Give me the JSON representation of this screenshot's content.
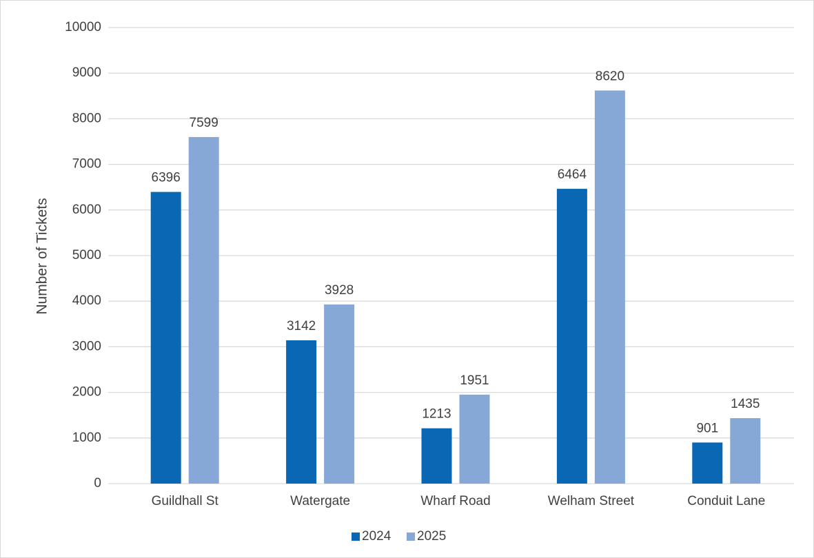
{
  "chart_data": {
    "type": "bar",
    "y_label": "Number of Tickets",
    "categories": [
      "Guildhall St",
      "Watergate",
      "Wharf Road",
      "Welham Street",
      "Conduit Lane"
    ],
    "series": [
      {
        "name": "2024",
        "color": "#0a67b3",
        "values": [
          6396,
          3142,
          1213,
          6464,
          901
        ]
      },
      {
        "name": "2025",
        "color": "#86a8d7",
        "values": [
          7599,
          3928,
          1951,
          8620,
          1435
        ]
      }
    ],
    "ylim": [
      0,
      10000
    ],
    "yticks": [
      0,
      1000,
      2000,
      3000,
      4000,
      5000,
      6000,
      7000,
      8000,
      9000,
      10000
    ],
    "grid": true,
    "legend": "bottom",
    "data_labels": true
  }
}
